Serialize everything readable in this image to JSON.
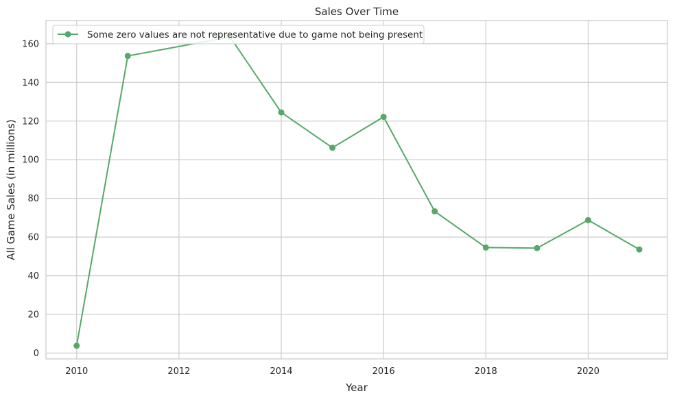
{
  "chart_data": {
    "type": "line",
    "title": "Sales Over Time",
    "xlabel": "Year",
    "ylabel": "All Game Sales (in millions)",
    "xlim": [
      2009.4,
      2021.55
    ],
    "ylim": [
      -3,
      172
    ],
    "xticks": [
      2010,
      2012,
      2014,
      2016,
      2018,
      2020
    ],
    "yticks": [
      0,
      20,
      40,
      60,
      80,
      100,
      120,
      140,
      160
    ],
    "grid": true,
    "legend_position": "top-left",
    "color": "#55a868",
    "series": [
      {
        "name": "Some zero values are not representative due to game not being present",
        "x": [
          2010,
          2011,
          2013,
          2014,
          2015,
          2016,
          2017,
          2018,
          2019,
          2020,
          2021
        ],
        "y": [
          3.8,
          153.7,
          163.5,
          124.5,
          106.2,
          122.2,
          73.3,
          54.6,
          54.3,
          68.8,
          53.6
        ]
      }
    ]
  }
}
